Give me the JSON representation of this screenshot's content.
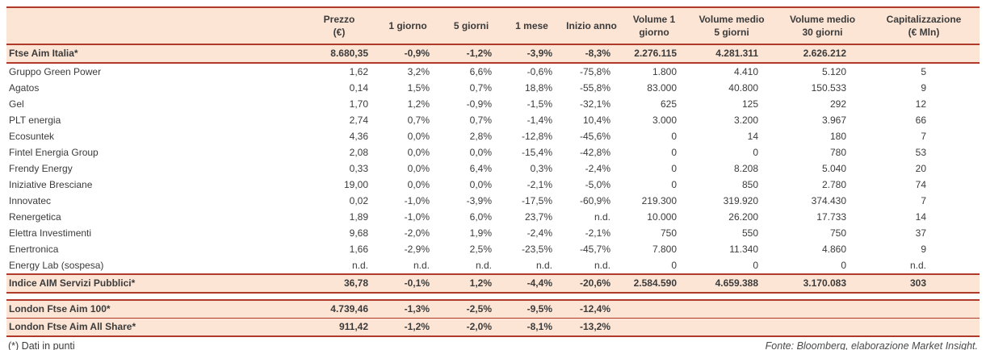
{
  "colors": {
    "border_red": "#b03a2a",
    "row_peach": "#fce5d5",
    "text_dark": "#3b3b3b"
  },
  "table": {
    "columns": [
      "",
      "Prezzo\n(€)",
      "1 giorno",
      "5 giorni",
      "1 mese",
      "Inizio anno",
      "Volume 1\ngiorno",
      "Volume medio\n5 giorni",
      "Volume medio\n30 giorni",
      "Capitalizzazione\n(€ Mln)"
    ],
    "main_rows": [
      {
        "name": "Ftse Aim Italia*",
        "type": "index",
        "values": [
          "8.680,35",
          "-0,9%",
          "-1,2%",
          "-3,9%",
          "-8,3%",
          "2.276.115",
          "4.281.311",
          "2.626.212",
          ""
        ]
      },
      {
        "name": "Gruppo Green Power",
        "type": "stock",
        "values": [
          "1,62",
          "3,2%",
          "6,6%",
          "-0,6%",
          "-75,8%",
          "1.800",
          "4.410",
          "5.120",
          "5"
        ]
      },
      {
        "name": "Agatos",
        "type": "stock",
        "values": [
          "0,14",
          "1,5%",
          "0,7%",
          "18,8%",
          "-55,8%",
          "83.000",
          "40.800",
          "150.533",
          "9"
        ]
      },
      {
        "name": "Gel",
        "type": "stock",
        "values": [
          "1,70",
          "1,2%",
          "-0,9%",
          "-1,5%",
          "-32,1%",
          "625",
          "125",
          "292",
          "12"
        ]
      },
      {
        "name": "PLT energia",
        "type": "stock",
        "values": [
          "2,74",
          "0,7%",
          "0,7%",
          "-1,4%",
          "10,4%",
          "3.000",
          "3.200",
          "3.967",
          "66"
        ]
      },
      {
        "name": "Ecosuntek",
        "type": "stock",
        "values": [
          "4,36",
          "0,0%",
          "2,8%",
          "-12,8%",
          "-45,6%",
          "0",
          "14",
          "180",
          "7"
        ]
      },
      {
        "name": "Fintel Energia Group",
        "type": "stock",
        "values": [
          "2,08",
          "0,0%",
          "0,0%",
          "-15,4%",
          "-42,8%",
          "0",
          "0",
          "780",
          "53"
        ]
      },
      {
        "name": "Frendy Energy",
        "type": "stock",
        "values": [
          "0,33",
          "0,0%",
          "6,4%",
          "0,3%",
          "-2,4%",
          "0",
          "8.208",
          "5.040",
          "20"
        ]
      },
      {
        "name": "Iniziative Bresciane",
        "type": "stock",
        "values": [
          "19,00",
          "0,0%",
          "0,0%",
          "-2,1%",
          "-5,0%",
          "0",
          "850",
          "2.780",
          "74"
        ]
      },
      {
        "name": "Innovatec",
        "type": "stock",
        "values": [
          "0,02",
          "-1,0%",
          "-3,9%",
          "-17,5%",
          "-60,9%",
          "219.300",
          "319.920",
          "374.430",
          "7"
        ]
      },
      {
        "name": "Renergetica",
        "type": "stock",
        "values": [
          "1,89",
          "-1,0%",
          "6,0%",
          "23,7%",
          "n.d.",
          "10.000",
          "26.200",
          "17.733",
          "14"
        ]
      },
      {
        "name": "Elettra Investimenti",
        "type": "stock",
        "values": [
          "9,68",
          "-2,0%",
          "1,9%",
          "-2,4%",
          "-2,1%",
          "750",
          "550",
          "750",
          "37"
        ]
      },
      {
        "name": "Enertronica",
        "type": "stock",
        "values": [
          "1,66",
          "-2,9%",
          "2,5%",
          "-23,5%",
          "-45,7%",
          "7.800",
          "11.340",
          "4.860",
          "9"
        ]
      },
      {
        "name": "Energy Lab (sospesa)",
        "type": "stock",
        "values": [
          "n.d.",
          "n.d.",
          "n.d.",
          "n.d.",
          "n.d.",
          "0",
          "0",
          "0",
          "n.d."
        ]
      },
      {
        "name": "Indice AIM Servizi Pubblici*",
        "type": "index",
        "values": [
          "36,78",
          "-0,1%",
          "1,2%",
          "-4,4%",
          "-20,6%",
          "2.584.590",
          "4.659.388",
          "3.170.083",
          "303"
        ]
      }
    ],
    "london_rows": [
      {
        "name": "London Ftse Aim 100*",
        "type": "index",
        "values": [
          "4.739,46",
          "-1,3%",
          "-2,5%",
          "-9,5%",
          "-12,4%",
          "",
          "",
          "",
          ""
        ]
      },
      {
        "name": "London Ftse Aim All Share*",
        "type": "index",
        "values": [
          "911,42",
          "-1,2%",
          "-2,0%",
          "-8,1%",
          "-13,2%",
          "",
          "",
          "",
          ""
        ]
      }
    ]
  },
  "footer": {
    "note": "(*) Dati in punti",
    "source": "Fonte: Bloomberg, elaborazione Market Insight."
  }
}
